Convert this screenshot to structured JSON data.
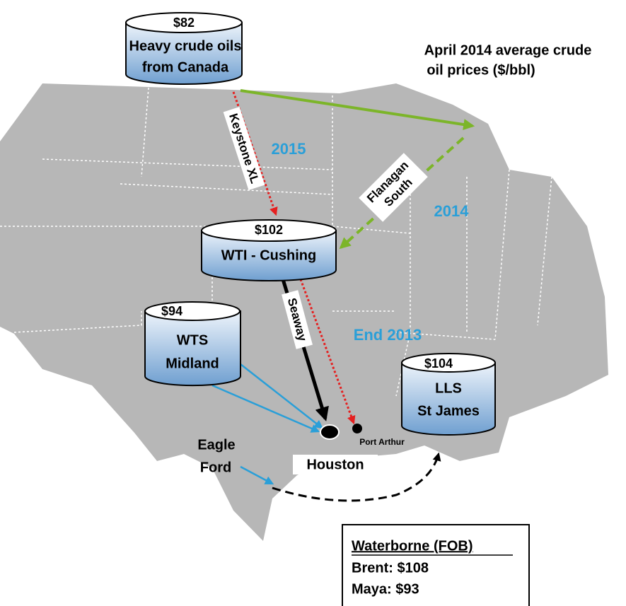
{
  "title": [
    "April 2014 average crude",
    "oil prices ($/bbl)"
  ],
  "hubs": [
    {
      "price": "$82",
      "name": [
        "Heavy crude oils",
        "from Canada"
      ]
    },
    {
      "price": "$102",
      "name": [
        "WTI - Cushing"
      ]
    },
    {
      "price": "$94",
      "name": [
        "WTS",
        "Midland"
      ]
    },
    {
      "price": "$104",
      "name": [
        "LLS",
        "St James"
      ]
    }
  ],
  "pipelines": [
    {
      "name": [
        "Keystone XL"
      ],
      "year": "2015"
    },
    {
      "name": [
        "Flanagan",
        "South"
      ],
      "year": "2014"
    },
    {
      "name": [
        "Seaway"
      ]
    },
    {
      "year": "End 2013"
    }
  ],
  "places": {
    "eagle_ford": [
      "Eagle",
      "Ford"
    ],
    "houston": "Houston",
    "port_arthur": "Port Arthur"
  },
  "waterborne": {
    "heading": "Waterborne (FOB)",
    "lines": [
      "Brent: $108",
      "Maya: $93"
    ]
  }
}
